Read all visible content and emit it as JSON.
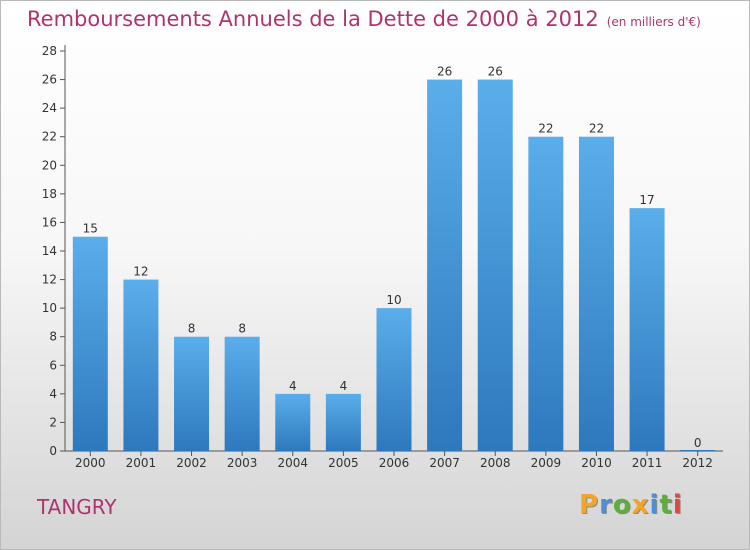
{
  "chart_data": {
    "type": "bar",
    "title": "Remboursements Annuels de la Dette de 2000 à 2012",
    "unit_note": "(en milliers d'€)",
    "categories": [
      "2000",
      "2001",
      "2002",
      "2003",
      "2004",
      "2005",
      "2006",
      "2007",
      "2008",
      "2009",
      "2010",
      "2011",
      "2012"
    ],
    "values": [
      15,
      12,
      8,
      8,
      4,
      4,
      10,
      26,
      26,
      22,
      22,
      17,
      0
    ],
    "ylim": [
      0,
      28
    ],
    "yticks": [
      0,
      2,
      4,
      6,
      8,
      10,
      12,
      14,
      16,
      18,
      20,
      22,
      24,
      26,
      28
    ],
    "xlabel": "",
    "ylabel": "",
    "grid": false,
    "bar_color": "#4f9fde"
  },
  "commune": "TANGRY",
  "logo": {
    "letters": [
      "P",
      "r",
      "o",
      "x",
      "i",
      "t",
      "i"
    ],
    "colors": [
      "#f3a526",
      "#4a8fd8",
      "#5dae3c",
      "#f3a526",
      "#4a8fd8",
      "#5dae3c",
      "#e04646"
    ]
  }
}
